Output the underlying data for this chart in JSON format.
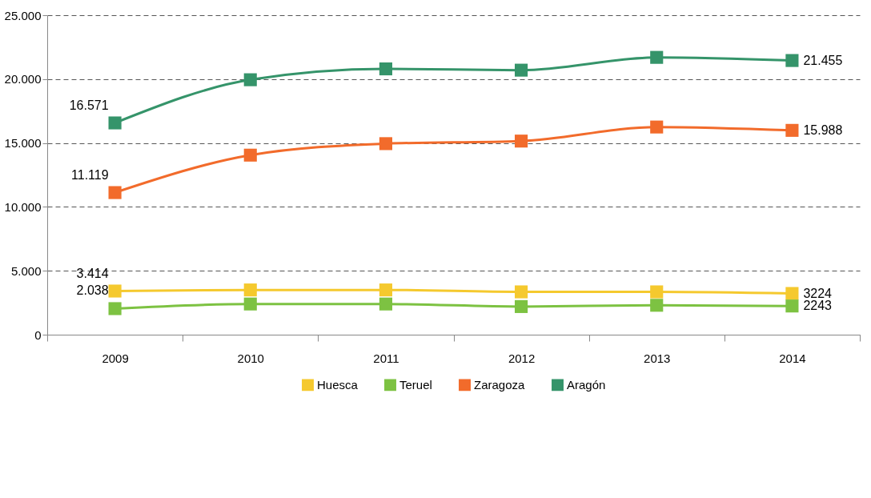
{
  "chart_data": {
    "type": "line",
    "categories": [
      "2009",
      "2010",
      "2011",
      "2012",
      "2013",
      "2014"
    ],
    "series": [
      {
        "name": "Huesca",
        "color": "#f5c92e",
        "values": [
          3414,
          3500,
          3500,
          3350,
          3350,
          3224
        ],
        "value_labels": [
          "3.414",
          null,
          null,
          null,
          null,
          "3224"
        ]
      },
      {
        "name": "Teruel",
        "color": "#7dc242",
        "values": [
          2038,
          2400,
          2400,
          2200,
          2300,
          2243
        ],
        "value_labels": [
          "2.038",
          null,
          null,
          null,
          null,
          "2243"
        ]
      },
      {
        "name": "Zaragoza",
        "color": "#f26b2b",
        "values": [
          11119,
          14050,
          14950,
          15150,
          16250,
          15988
        ],
        "value_labels": [
          "11.119",
          null,
          null,
          null,
          null,
          "15.988"
        ]
      },
      {
        "name": "Aragón",
        "color": "#35946a",
        "values": [
          16571,
          19950,
          20800,
          20700,
          21700,
          21455
        ],
        "value_labels": [
          "16.571",
          null,
          null,
          null,
          null,
          "21.455"
        ]
      }
    ],
    "ylim": [
      0,
      25000
    ],
    "yticks": [
      0,
      {
        "value": 5000,
        "label": "5.000"
      },
      {
        "value": 10000,
        "label": "10.000"
      },
      {
        "value": 15000,
        "label": "15.000"
      },
      {
        "value": 20000,
        "label": "20.000"
      },
      {
        "value": 25000,
        "label": "25.000"
      }
    ],
    "grid": "y",
    "legend": "bottom",
    "marker": "square",
    "line_style": "solid"
  }
}
